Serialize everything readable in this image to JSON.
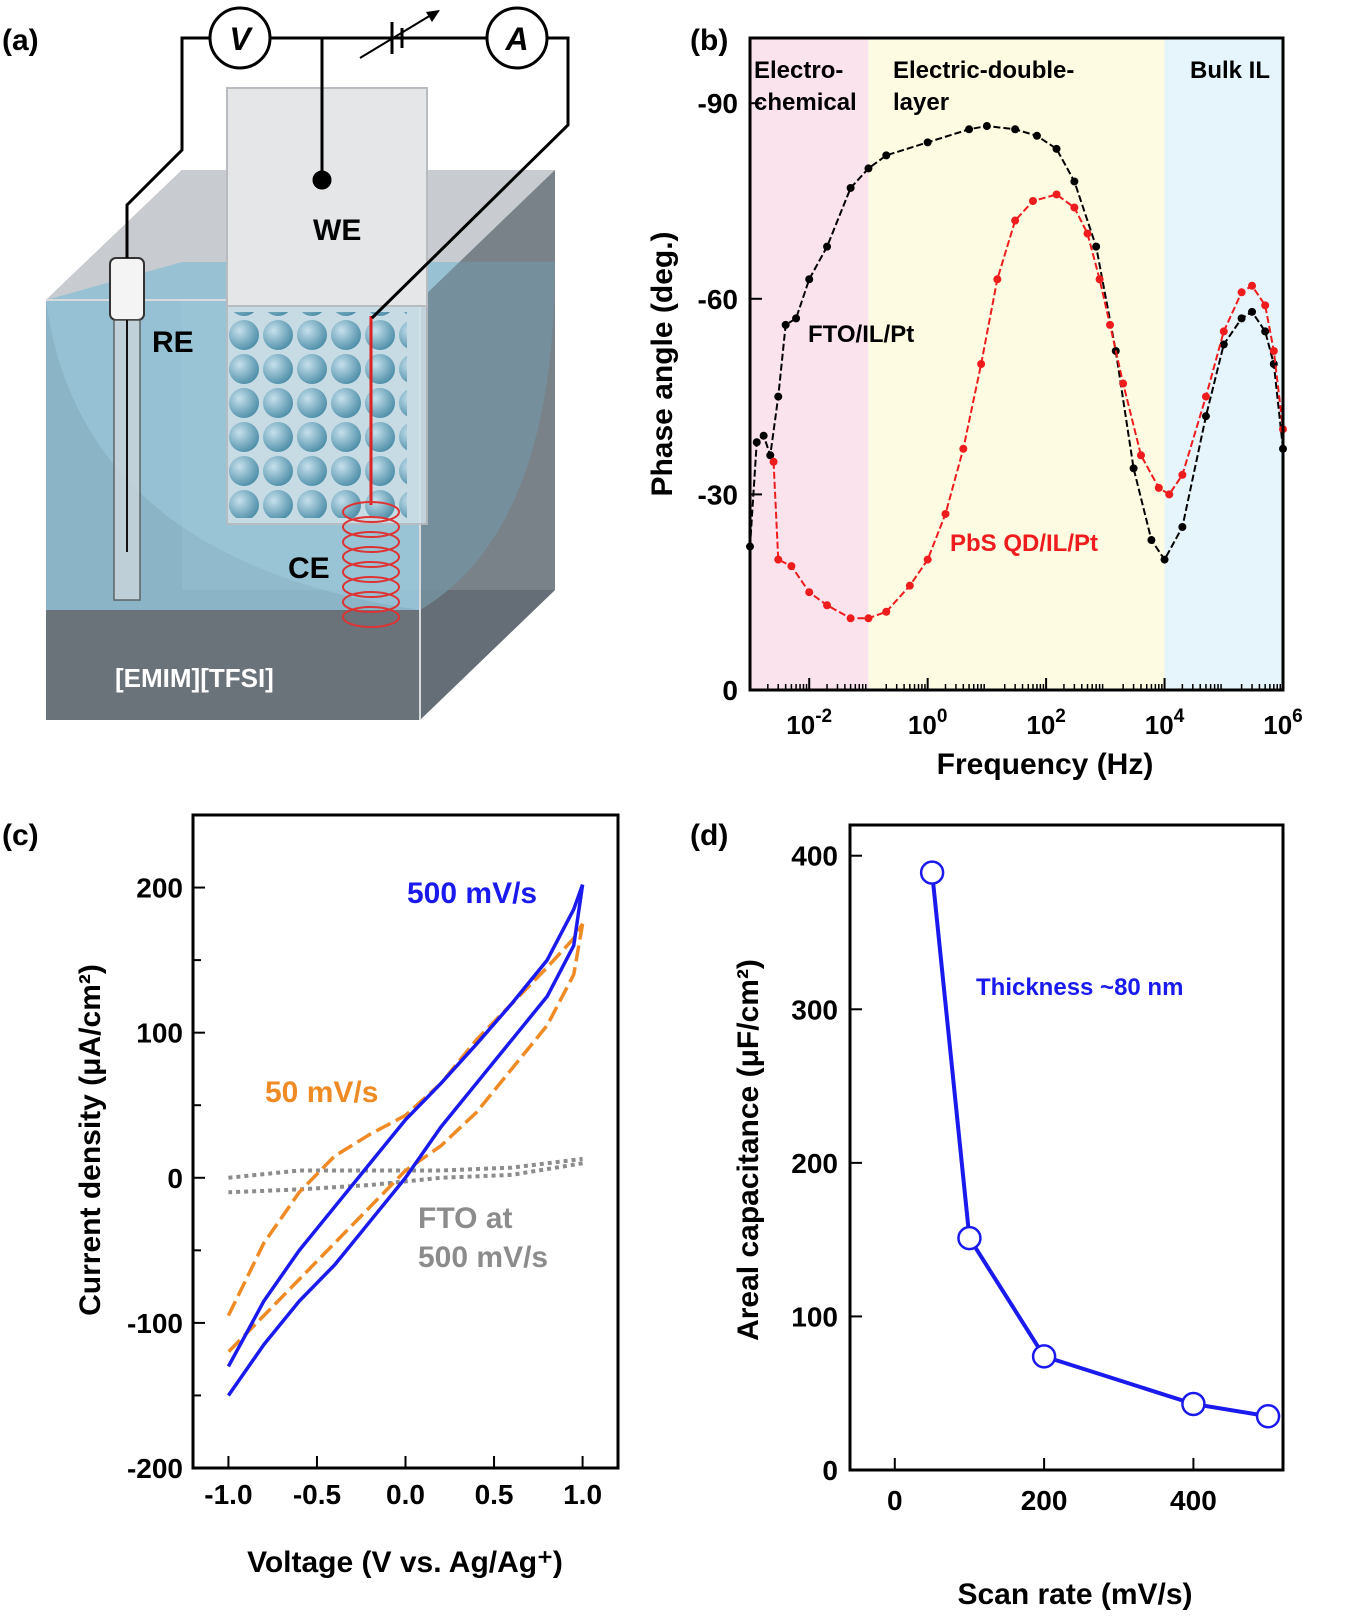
{
  "panels": {
    "a": {
      "label": "(a)",
      "meters": {
        "voltmeter": "V",
        "ammeter": "A"
      },
      "electrodes": {
        "working": "WE",
        "reference": "RE",
        "counter": "CE"
      },
      "electrolyte": "[EMIM][TFSI]"
    },
    "b": {
      "label": "(b)"
    },
    "c": {
      "label": "(c)"
    },
    "d": {
      "label": "(d)"
    }
  },
  "colors": {
    "black": "#000000",
    "red": "#ee1c1c",
    "blue": "#1a1aee",
    "orange": "#f08a24",
    "gray": "#8c8c8c",
    "region_pink": "#fbe3ee",
    "region_yellow": "#fefbe3",
    "region_blue": "#e6f4fb"
  },
  "chart_data": [
    {
      "panel": "b",
      "type": "scatter",
      "xlabel": "Frequency (Hz)",
      "ylabel": "Phase angle (deg.)",
      "xscale": "log",
      "xlim": [
        0.001,
        1000000
      ],
      "ylim": [
        0,
        -100
      ],
      "xticks": [
        {
          "value": 0.01,
          "base": "10",
          "exp": "-2"
        },
        {
          "value": 1,
          "base": "10",
          "exp": "0"
        },
        {
          "value": 100,
          "base": "10",
          "exp": "2"
        },
        {
          "value": 10000,
          "base": "10",
          "exp": "4"
        },
        {
          "value": 1000000,
          "base": "10",
          "exp": "6"
        }
      ],
      "yticks": [
        0,
        -30,
        -60,
        -90
      ],
      "regions": [
        {
          "label": "Electro-\nchemical",
          "from": 0.001,
          "to": 0.1,
          "color": "#fbe3ee"
        },
        {
          "label": "Electric-double-\nlayer",
          "from": 0.1,
          "to": 10000,
          "color": "#fefbe3"
        },
        {
          "label": "Bulk IL",
          "from": 10000,
          "to": 1000000,
          "color": "#e6f4fb"
        }
      ],
      "series": [
        {
          "name": "FTO/IL/Pt",
          "color": "#000000",
          "points": [
            [
              0.001,
              -22
            ],
            [
              0.0013,
              -38
            ],
            [
              0.0017,
              -39
            ],
            [
              0.0022,
              -36
            ],
            [
              0.003,
              -45
            ],
            [
              0.004,
              -56
            ],
            [
              0.006,
              -57
            ],
            [
              0.01,
              -63
            ],
            [
              0.02,
              -68
            ],
            [
              0.05,
              -77
            ],
            [
              0.1,
              -80
            ],
            [
              0.2,
              -82
            ],
            [
              1,
              -84
            ],
            [
              5,
              -86
            ],
            [
              10,
              -86.5
            ],
            [
              30,
              -86
            ],
            [
              70,
              -85
            ],
            [
              150,
              -83
            ],
            [
              300,
              -78
            ],
            [
              700,
              -68
            ],
            [
              1500,
              -52
            ],
            [
              3000,
              -34
            ],
            [
              6000,
              -23
            ],
            [
              10000,
              -20
            ],
            [
              20000,
              -25
            ],
            [
              50000,
              -42
            ],
            [
              100000,
              -53
            ],
            [
              200000,
              -57
            ],
            [
              300000,
              -58
            ],
            [
              500000,
              -55
            ],
            [
              700000,
              -50
            ],
            [
              1000000,
              -37
            ]
          ]
        },
        {
          "name": "PbS QD/IL/Pt",
          "color": "#ee1c1c",
          "points": [
            [
              0.0025,
              -35
            ],
            [
              0.003,
              -20
            ],
            [
              0.005,
              -19
            ],
            [
              0.01,
              -15
            ],
            [
              0.02,
              -13
            ],
            [
              0.05,
              -11
            ],
            [
              0.1,
              -11
            ],
            [
              0.2,
              -12
            ],
            [
              0.5,
              -16
            ],
            [
              1,
              -20
            ],
            [
              2,
              -27
            ],
            [
              4,
              -37
            ],
            [
              8,
              -50
            ],
            [
              15,
              -63
            ],
            [
              30,
              -72
            ],
            [
              60,
              -75
            ],
            [
              150,
              -76
            ],
            [
              300,
              -74
            ],
            [
              500,
              -70
            ],
            [
              800,
              -63
            ],
            [
              1200,
              -56
            ],
            [
              2000,
              -47
            ],
            [
              4000,
              -36
            ],
            [
              8000,
              -31
            ],
            [
              12000,
              -30
            ],
            [
              20000,
              -33
            ],
            [
              50000,
              -45
            ],
            [
              100000,
              -55
            ],
            [
              200000,
              -61
            ],
            [
              300000,
              -62
            ],
            [
              500000,
              -59
            ],
            [
              700000,
              -52
            ],
            [
              1000000,
              -40
            ]
          ]
        }
      ],
      "annotations": {
        "fto": "FTO/IL/Pt",
        "pbs": "PbS QD/IL/Pt"
      }
    },
    {
      "panel": "c",
      "type": "line",
      "xlabel": "Voltage (V vs. Ag/Ag⁺)",
      "ylabel": "Current density (μA/cm²)",
      "xlim": [
        -1.2,
        1.2
      ],
      "ylim": [
        -200,
        250
      ],
      "xticks": [
        {
          "value": -1.0,
          "label": "-1.0"
        },
        {
          "value": -0.5,
          "label": "-0.5"
        },
        {
          "value": 0.0,
          "label": "0.0"
        },
        {
          "value": 0.5,
          "label": "0.5"
        },
        {
          "value": 1.0,
          "label": "1.0"
        }
      ],
      "yticks": [
        -200,
        -100,
        0,
        100,
        200
      ],
      "series": [
        {
          "name": "500 mV/s",
          "color": "#1a1aee",
          "style": "solid",
          "upper": [
            [
              -1.0,
              -130
            ],
            [
              -0.8,
              -85
            ],
            [
              -0.6,
              -50
            ],
            [
              -0.4,
              -20
            ],
            [
              -0.2,
              10
            ],
            [
              0.0,
              40
            ],
            [
              0.2,
              65
            ],
            [
              0.4,
              92
            ],
            [
              0.6,
              120
            ],
            [
              0.8,
              150
            ],
            [
              0.95,
              185
            ],
            [
              1.0,
              202
            ]
          ],
          "lower": [
            [
              1.0,
              202
            ],
            [
              0.95,
              160
            ],
            [
              0.8,
              125
            ],
            [
              0.6,
              95
            ],
            [
              0.4,
              65
            ],
            [
              0.2,
              35
            ],
            [
              0.0,
              0
            ],
            [
              -0.2,
              -30
            ],
            [
              -0.4,
              -60
            ],
            [
              -0.6,
              -85
            ],
            [
              -0.8,
              -115
            ],
            [
              -1.0,
              -150
            ]
          ]
        },
        {
          "name": "50 mV/s",
          "color": "#f08a24",
          "style": "dashed",
          "upper": [
            [
              -1.0,
              -95
            ],
            [
              -0.8,
              -45
            ],
            [
              -0.6,
              -10
            ],
            [
              -0.4,
              15
            ],
            [
              -0.2,
              30
            ],
            [
              0.0,
              43
            ],
            [
              0.2,
              65
            ],
            [
              0.4,
              95
            ],
            [
              0.6,
              120
            ],
            [
              0.8,
              145
            ],
            [
              0.95,
              165
            ],
            [
              1.0,
              175
            ]
          ],
          "lower": [
            [
              1.0,
              175
            ],
            [
              0.95,
              140
            ],
            [
              0.8,
              105
            ],
            [
              0.6,
              75
            ],
            [
              0.4,
              45
            ],
            [
              0.2,
              22
            ],
            [
              0.0,
              5
            ],
            [
              -0.2,
              -20
            ],
            [
              -0.4,
              -45
            ],
            [
              -0.6,
              -70
            ],
            [
              -0.8,
              -95
            ],
            [
              -1.0,
              -120
            ]
          ]
        },
        {
          "name": "FTO at 500 mV/s",
          "color": "#8c8c8c",
          "style": "dotted",
          "upper": [
            [
              -1.0,
              0
            ],
            [
              -0.6,
              5
            ],
            [
              -0.2,
              5
            ],
            [
              0.2,
              5
            ],
            [
              0.6,
              7
            ],
            [
              1.0,
              13
            ]
          ],
          "lower": [
            [
              1.0,
              10
            ],
            [
              0.6,
              2
            ],
            [
              0.2,
              0
            ],
            [
              -0.2,
              -5
            ],
            [
              -0.6,
              -8
            ],
            [
              -1.0,
              -10
            ]
          ]
        }
      ],
      "annotations": {
        "s500": "500 mV/s",
        "s50": "50 mV/s",
        "fto_line1": "FTO at",
        "fto_line2": "500 mV/s"
      }
    },
    {
      "panel": "d",
      "type": "line",
      "xlabel": "Scan rate (mV/s)",
      "ylabel": "Areal capacitance (μF/cm²)",
      "xlim": [
        -60,
        520
      ],
      "ylim": [
        0,
        420
      ],
      "xticks": [
        0,
        200,
        400
      ],
      "yticks": [
        0,
        100,
        200,
        300,
        400
      ],
      "series": [
        {
          "name": "",
          "color": "#1a1aee",
          "x": [
            50,
            100,
            200,
            400,
            500
          ],
          "y": [
            389,
            151,
            74,
            43,
            35
          ]
        }
      ],
      "annotations": {
        "thickness": "Thickness ~80 nm"
      }
    }
  ]
}
